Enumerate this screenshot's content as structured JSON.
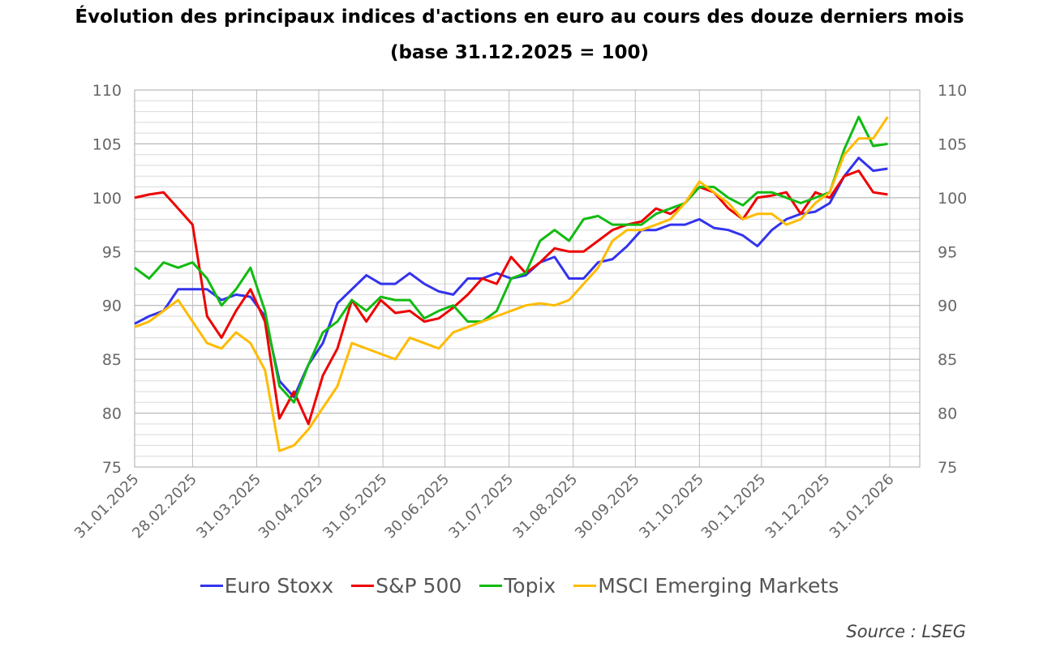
{
  "chart_data": {
    "type": "line",
    "title": "Évolution des principaux indices d'actions en euro au cours des douze derniers mois",
    "subtitle": "(base 31.12.2025 = 100)",
    "xlabel": "",
    "ylabel": "",
    "ylim": [
      75,
      110
    ],
    "yticks": [
      "75",
      "80",
      "85",
      "90",
      "95",
      "100",
      "105",
      "110"
    ],
    "xlim": [
      "2025-01-31",
      "2026-02-13"
    ],
    "xtick_dates": [
      "2025-01-31",
      "2025-02-28",
      "2025-03-31",
      "2025-04-30",
      "2025-05-31",
      "2025-06-30",
      "2025-07-31",
      "2025-08-31",
      "2025-09-30",
      "2025-10-31",
      "2025-11-30",
      "2025-12-31",
      "2026-01-31"
    ],
    "xtick_labels": [
      "31.01.2025",
      "28.02.2025",
      "31.03.2025",
      "30.04.2025",
      "31.05.2025",
      "30.06.2025",
      "31.07.2025",
      "31.08.2025",
      "30.09.2025",
      "31.10.2025",
      "30.11.2025",
      "31.12.2025",
      "31.01.2026"
    ],
    "grid": true,
    "legend_position": "bottom",
    "source": "Source : LSEG",
    "x": [
      "2025-01-31",
      "2025-02-07",
      "2025-02-14",
      "2025-02-21",
      "2025-02-28",
      "2025-03-07",
      "2025-03-14",
      "2025-03-21",
      "2025-03-28",
      "2025-04-04",
      "2025-04-11",
      "2025-04-18",
      "2025-04-25",
      "2025-05-02",
      "2025-05-09",
      "2025-05-16",
      "2025-05-23",
      "2025-05-30",
      "2025-06-06",
      "2025-06-13",
      "2025-06-20",
      "2025-06-27",
      "2025-07-04",
      "2025-07-11",
      "2025-07-18",
      "2025-07-25",
      "2025-08-01",
      "2025-08-08",
      "2025-08-15",
      "2025-08-22",
      "2025-08-29",
      "2025-09-05",
      "2025-09-12",
      "2025-09-19",
      "2025-09-26",
      "2025-10-03",
      "2025-10-10",
      "2025-10-17",
      "2025-10-24",
      "2025-10-31",
      "2025-11-07",
      "2025-11-14",
      "2025-11-21",
      "2025-11-28",
      "2025-12-05",
      "2025-12-12",
      "2025-12-19",
      "2025-12-26",
      "2026-01-02",
      "2026-01-09",
      "2026-01-16",
      "2026-01-23",
      "2026-01-30"
    ],
    "series": [
      {
        "name": "Euro Stoxx",
        "color": "#3333ee",
        "values": [
          88.3,
          89,
          89.5,
          91.5,
          91.5,
          91.5,
          90.5,
          91,
          90.8,
          89,
          83,
          81.5,
          84.5,
          86.5,
          90.2,
          91.5,
          92.8,
          92,
          92,
          93,
          92,
          91.3,
          91,
          92.5,
          92.5,
          93,
          92.5,
          92.8,
          94,
          94.5,
          92.5,
          92.5,
          94,
          94.3,
          95.5,
          97,
          97,
          97.5,
          97.5,
          98,
          97.2,
          97,
          96.5,
          95.5,
          97,
          98,
          98.5,
          98.7,
          99.5,
          102,
          103.7,
          102.5,
          102.7
        ]
      },
      {
        "name": "S&P 500",
        "color": "#ee0000",
        "values": [
          100,
          100.3,
          100.5,
          99,
          97.5,
          89,
          87,
          89.5,
          91.5,
          88.5,
          79.5,
          82,
          79,
          83.5,
          86,
          90.5,
          88.5,
          90.5,
          89.3,
          89.5,
          88.5,
          88.8,
          89.8,
          91,
          92.5,
          92,
          94.5,
          93,
          94,
          95.3,
          95,
          95,
          96,
          97,
          97.5,
          97.8,
          99,
          98.5,
          99.5,
          101,
          100.5,
          99,
          98,
          100,
          100.2,
          100.5,
          98.5,
          100.5,
          100,
          102,
          102.5,
          100.5,
          100.3
        ]
      },
      {
        "name": "Topix",
        "color": "#11bb11",
        "values": [
          93.5,
          92.5,
          94,
          93.5,
          94,
          92.5,
          90,
          91.5,
          93.5,
          89.5,
          82.5,
          81,
          84.5,
          87.5,
          88.5,
          90.5,
          89.5,
          90.8,
          90.5,
          90.5,
          88.8,
          89.5,
          90,
          88.5,
          88.5,
          89.5,
          92.5,
          93,
          96,
          97,
          96,
          98,
          98.3,
          97.5,
          97.5,
          97.5,
          98.5,
          99,
          99.5,
          101,
          101,
          100,
          99.3,
          100.5,
          100.5,
          100,
          99.5,
          100,
          100.5,
          104.5,
          107.5,
          104.8,
          105
        ]
      },
      {
        "name": "MSCI Emerging Markets",
        "color": "#ffbb00",
        "values": [
          88,
          88.5,
          89.5,
          90.5,
          88.5,
          86.5,
          86,
          87.5,
          86.5,
          84,
          76.5,
          77,
          78.5,
          80.5,
          82.5,
          86.5,
          86,
          85.5,
          85,
          87,
          86.5,
          86,
          87.5,
          88,
          88.5,
          89,
          89.5,
          90,
          90.2,
          90,
          90.5,
          92,
          93.5,
          96,
          97,
          97,
          97.5,
          98,
          99.5,
          101.5,
          100.5,
          99.5,
          98,
          98.5,
          98.5,
          97.5,
          98,
          99.5,
          100.5,
          104,
          105.5,
          105.5,
          107.5
        ]
      }
    ]
  }
}
